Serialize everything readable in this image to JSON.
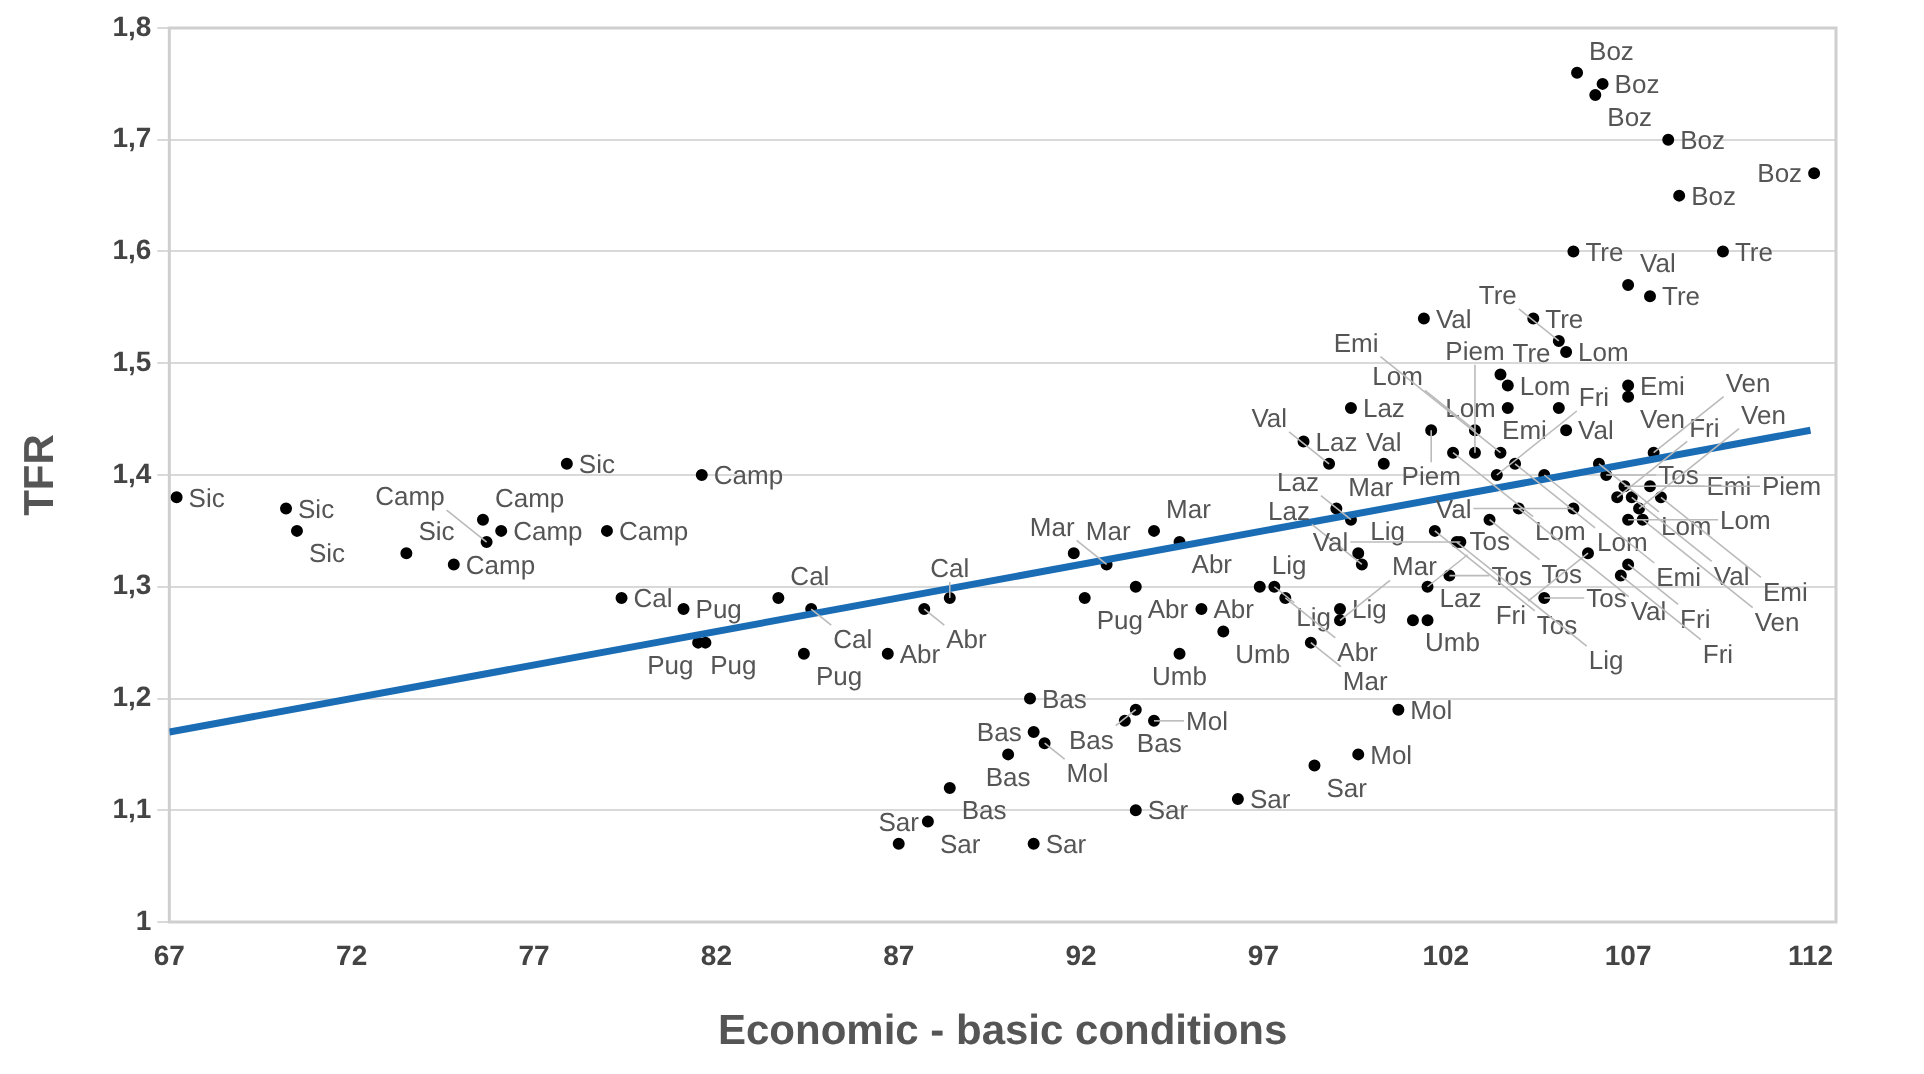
{
  "chart_data": {
    "type": "scatter",
    "xlabel": "Economic - basic conditions",
    "ylabel": "TFR",
    "xlim": [
      67,
      112.7
    ],
    "xticks": [
      67,
      72,
      77,
      82,
      87,
      92,
      97,
      102,
      107,
      112
    ],
    "ylim": [
      1,
      1.8
    ],
    "yticks": [
      1,
      {
        "value": 1.1,
        "label": "1,1"
      },
      {
        "value": 1.2,
        "label": "1,2"
      },
      {
        "value": 1.3,
        "label": "1,3"
      },
      {
        "value": 1.4,
        "label": "1,4"
      },
      {
        "value": 1.5,
        "label": "1,5"
      },
      {
        "value": 1.6,
        "label": "1,6"
      },
      {
        "value": 1.7,
        "label": "1,7"
      },
      {
        "value": 1.8,
        "label": "1,8"
      }
    ],
    "grid": "y",
    "legend": false,
    "marker": "circle",
    "series": [
      {
        "color": "#000000",
        "x": [
          67.2,
          70.2,
          70.5,
          73.5,
          74.8,
          77.9,
          81.6,
          75.6,
          76.1,
          75.7,
          79.0,
          79.4,
          81.1,
          81.5,
          81.7,
          83.7,
          84.6,
          84.4,
          86.7,
          87.7,
          88.4,
          92.1,
          91.8,
          92.7,
          94.0,
          94.7,
          93.5,
          95.3,
          96.9,
          97.3,
          97.6,
          95.9,
          94.7,
          98.3,
          99.1,
          99.1,
          101.1,
          101.5,
          99.0,
          99.4,
          99.6,
          99.7,
          101.5,
          102.1,
          90.6,
          93.5,
          90.7,
          91.0,
          93.2,
          94.0,
          90.0,
          88.4,
          87.8,
          87.0,
          90.7,
          93.5,
          96.3,
          98.4,
          99.6,
          100.7,
          105.3,
          103.5,
          103.7,
          107.0,
          107.0,
          99.4,
          103.7,
          105.1,
          101.6,
          102.8,
          105.3,
          98.1,
          98.8,
          100.3,
          102.2,
          102.8,
          103.5,
          103.9,
          104.7,
          103.4,
          101.7,
          102.4,
          102.3,
          103.2,
          104.0,
          106.2,
          106.4,
          106.7,
          106.9,
          107.1,
          107.3,
          107.6,
          107.9,
          107.0,
          107.4,
          107.7,
          105.5,
          105.9,
          107.0,
          106.8,
          104.7,
          105.6,
          106.1,
          106.3,
          108.1,
          112.1,
          108.4,
          105.5,
          109.6,
          107.0,
          107.6,
          101.4,
          104.4,
          105.1
        ],
        "values": [
          1.38,
          1.37,
          1.35,
          1.33,
          1.32,
          1.41,
          1.4,
          1.36,
          1.35,
          1.34,
          1.35,
          1.29,
          1.28,
          1.25,
          1.25,
          1.29,
          1.28,
          1.24,
          1.24,
          1.28,
          1.29,
          1.29,
          1.33,
          1.32,
          1.35,
          1.34,
          1.3,
          1.28,
          1.3,
          1.3,
          1.29,
          1.26,
          1.24,
          1.25,
          1.28,
          1.27,
          1.27,
          1.27,
          1.37,
          1.36,
          1.33,
          1.32,
          1.3,
          1.31,
          1.2,
          1.19,
          1.17,
          1.16,
          1.18,
          1.18,
          1.15,
          1.12,
          1.09,
          1.07,
          1.07,
          1.1,
          1.11,
          1.14,
          1.15,
          1.19,
          1.51,
          1.49,
          1.48,
          1.48,
          1.47,
          1.46,
          1.46,
          1.46,
          1.44,
          1.44,
          1.44,
          1.43,
          1.41,
          1.41,
          1.42,
          1.42,
          1.42,
          1.41,
          1.4,
          1.4,
          1.35,
          1.34,
          1.34,
          1.36,
          1.37,
          1.41,
          1.4,
          1.38,
          1.39,
          1.38,
          1.37,
          1.39,
          1.38,
          1.36,
          1.36,
          1.42,
          1.37,
          1.33,
          1.32,
          1.31,
          1.29,
          1.76,
          1.74,
          1.75,
          1.7,
          1.67,
          1.65,
          1.6,
          1.6,
          1.57,
          1.56,
          1.54,
          1.54,
          1.52
        ],
        "value_labels": [
          "Sic",
          "Sic",
          "Sic",
          "Sic",
          "Camp",
          "Sic",
          "Camp",
          "Camp",
          "Camp",
          "Camp",
          "Camp",
          "Cal",
          "Pug",
          "Pug",
          "Pug",
          "Cal",
          "Cal",
          "Pug",
          "Abr",
          "Abr",
          "Cal",
          "Pug",
          "Mar",
          "Mar",
          "Mar",
          "Abr",
          "Abr",
          "Abr",
          "Lig",
          "Lig",
          "Abr",
          "Umb",
          "Umb",
          "Mar",
          "Lig",
          "Mar",
          "Umb",
          "Laz",
          "Mar",
          "Laz",
          "Lig",
          "Laz",
          "Tos",
          "Tos",
          "Bas",
          "Bas",
          "Bas",
          "Mol",
          "Bas",
          "Mol",
          "Bas",
          "Bas",
          "Sar",
          "Sar",
          "Sar",
          "Sar",
          "Sar",
          "Sar",
          "Mol",
          "Mol",
          "Lom",
          "Tre",
          "Lom",
          "Emi",
          "Ven",
          "Laz",
          "Lom",
          "Emi",
          "Piem",
          "Lom",
          "Val",
          "Laz",
          "Val",
          "Val",
          "Lom",
          "Piem",
          "Emi",
          "Lom",
          "Emi",
          "Fri",
          "Tos",
          "Val",
          "Lig",
          "Tos",
          "Val",
          "Lom",
          "Tos",
          "Fri",
          "Emi",
          "Val",
          "Ven",
          "Piem",
          "Emi",
          "Lom",
          "Ven",
          "Ven",
          "Val",
          "Fri",
          "Fri",
          "Fri",
          "Tos",
          "Boz",
          "Boz",
          "Boz",
          "Boz",
          "Boz",
          "Boz",
          "Tre",
          "Tre",
          "Val",
          "Tre",
          "Val",
          "Tre",
          "Tre"
        ]
      },
      {
        "type": "line",
        "color": "#1a6db5",
        "marker": "none",
        "x": [
          67,
          112
        ],
        "values": [
          1.17,
          1.44
        ]
      }
    ]
  }
}
